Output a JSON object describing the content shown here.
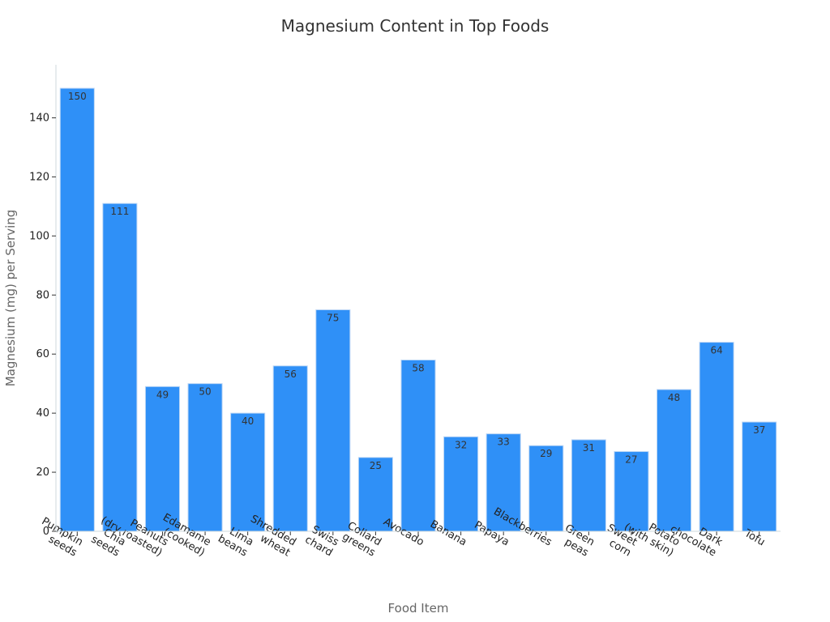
{
  "chart_data": {
    "type": "bar",
    "title": "Magnesium Content in Top Foods",
    "xlabel": "Food Item",
    "ylabel": "Magnesium (mg) per Serving",
    "ylim": [
      0,
      150
    ],
    "yticks": [
      0,
      20,
      40,
      60,
      80,
      100,
      120,
      140
    ],
    "grid": false,
    "bar_color": "#2f90f7",
    "bar_edge_color": "#bcd6f5",
    "categories": [
      [
        "Pumpkin",
        "seeds"
      ],
      [
        "Chia",
        "seeds"
      ],
      [
        "Peanuts",
        "(dry roasted)"
      ],
      [
        "Edamame",
        "(cooked)"
      ],
      [
        "Lima",
        "beans"
      ],
      [
        "Shredded",
        "wheat"
      ],
      [
        "Swiss",
        "chard"
      ],
      [
        "Collard",
        "greens"
      ],
      [
        "Avocado"
      ],
      [
        "Banana"
      ],
      [
        "Papaya"
      ],
      [
        "Blackberries"
      ],
      [
        "Green",
        "peas"
      ],
      [
        "Sweet",
        "corn"
      ],
      [
        "Potato",
        "(with skin)"
      ],
      [
        "Dark",
        "chocolate"
      ],
      [
        "Tofu"
      ]
    ],
    "values": [
      150,
      111,
      49,
      50,
      40,
      56,
      75,
      25,
      58,
      32,
      33,
      29,
      31,
      27,
      48,
      64,
      37
    ]
  }
}
